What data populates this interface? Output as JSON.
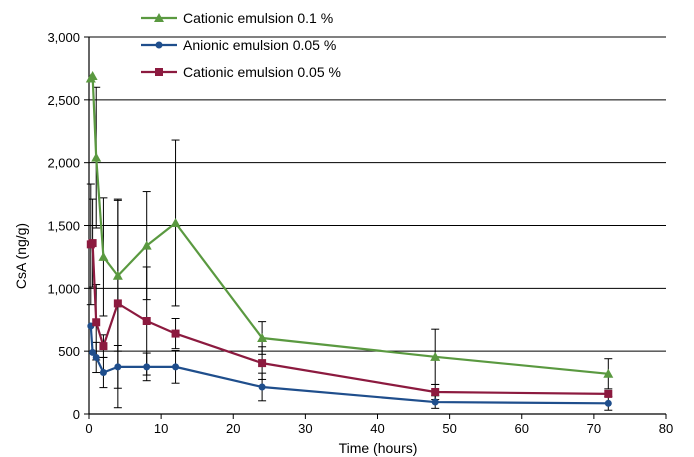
{
  "chart_data": {
    "type": "line",
    "title": "",
    "xlabel": "Time (hours)",
    "ylabel": "CsA (ng/g)",
    "xlim": [
      0,
      80
    ],
    "ylim": [
      0,
      3000
    ],
    "xticks": [
      0,
      10,
      20,
      30,
      40,
      50,
      60,
      70,
      80
    ],
    "yticks": [
      0,
      500,
      1000,
      1500,
      2000,
      2500,
      3000
    ],
    "xtick_labels": [
      "0",
      "10",
      "20",
      "30",
      "40",
      "50",
      "60",
      "70",
      "80"
    ],
    "ytick_labels": [
      "0",
      "500",
      "1,000",
      "1,500",
      "2,000",
      "2,500",
      "3,000"
    ],
    "grid": "horizontal",
    "legend_position": "top",
    "series": [
      {
        "name": "Cationic emulsion 0.1 %",
        "color": "#5a9940",
        "marker": "triangle",
        "x": [
          0.25,
          0.5,
          1,
          2,
          4,
          8,
          12,
          24,
          48,
          72
        ],
        "y": [
          2670,
          2690,
          2040,
          1250,
          1100,
          1340,
          1520,
          605,
          455,
          320
        ],
        "error": [
          0,
          0,
          560,
          470,
          600,
          430,
          660,
          130,
          220,
          120
        ]
      },
      {
        "name": "Anionic emulsion 0.05 %",
        "color": "#1f4e8c",
        "marker": "circle",
        "x": [
          0.25,
          0.5,
          1,
          2,
          4,
          8,
          12,
          24,
          48,
          72
        ],
        "y": [
          700,
          490,
          450,
          330,
          375,
          375,
          375,
          215,
          95,
          85
        ],
        "error": [
          0,
          0,
          120,
          120,
          170,
          110,
          130,
          110,
          50,
          55
        ]
      },
      {
        "name": "Cationic emulsion 0.05 %",
        "color": "#8c1a3f",
        "marker": "square",
        "x": [
          0.25,
          0.5,
          1,
          2,
          4,
          8,
          12,
          24,
          48,
          72
        ],
        "y": [
          1350,
          1360,
          730,
          540,
          880,
          740,
          640,
          405,
          175,
          160
        ],
        "error": [
          480,
          350,
          300,
          90,
          830,
          430,
          120,
          130,
          60,
          0
        ]
      }
    ]
  }
}
